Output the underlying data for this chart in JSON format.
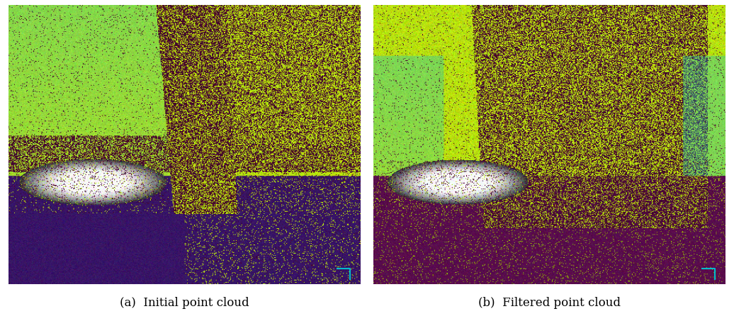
{
  "caption_a": "(a)  Initial point cloud",
  "caption_b": "(b)  Filtered point cloud",
  "fig_width": 10.36,
  "fig_height": 4.53,
  "bg_color": "#ffffff",
  "caption_fontsize": 12,
  "caption_color": "#000000",
  "seed": 42
}
